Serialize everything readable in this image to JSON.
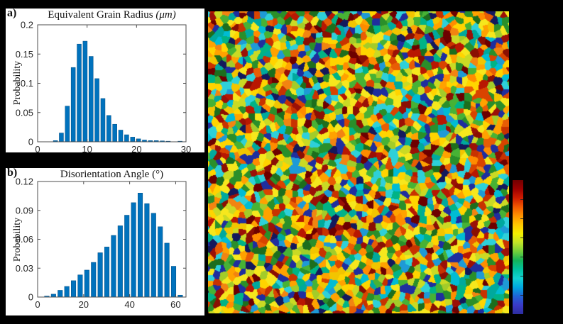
{
  "figure": {
    "background": "#000000",
    "panel_a": {
      "corner_label": "a)",
      "title": "Equivalent Grain Radius ",
      "title_unit": "(μm)",
      "ylabel": "Probability"
    },
    "panel_b": {
      "corner_label": "b)",
      "title": "Disorientation Angle ",
      "title_unit": "(°)",
      "ylabel": "Probability"
    }
  },
  "chart_data": [
    {
      "type": "bar",
      "id": "chart-a",
      "title": "Equivalent Grain Radius (μm)",
      "xlabel": "",
      "ylabel": "Probability",
      "x": [
        3.6,
        4.8,
        6,
        7.2,
        8.4,
        9.6,
        10.8,
        12,
        13.2,
        14.4,
        15.6,
        16.8,
        18,
        19.2,
        20.4,
        21.6,
        22.8,
        24,
        25.2,
        26.4,
        28.8
      ],
      "values": [
        0.002,
        0.015,
        0.061,
        0.127,
        0.167,
        0.172,
        0.146,
        0.108,
        0.074,
        0.045,
        0.03,
        0.02,
        0.012,
        0.008,
        0.005,
        0.003,
        0.002,
        0.002,
        0.0015,
        0.001,
        0.001
      ],
      "bar_width": 0.85,
      "xlim": [
        0,
        30
      ],
      "ylim": [
        0,
        0.2
      ],
      "xticks": [
        0,
        10,
        20,
        30
      ],
      "xticklabels": [
        "0",
        "10",
        "20",
        "30"
      ],
      "yticks": [
        0,
        0.05,
        0.1,
        0.15,
        0.2
      ],
      "yticklabels": [
        "0",
        "0.05",
        "0.1",
        "0.15",
        "0.2"
      ],
      "grid": false,
      "legend": null,
      "bar_color": "#0072BD",
      "bar_edge": "#08568c"
    },
    {
      "type": "bar",
      "id": "chart-b",
      "title": "Disorientation Angle (°)",
      "xlabel": "",
      "ylabel": "Probability",
      "x": [
        4,
        6.9,
        9.8,
        12.7,
        15.6,
        18.5,
        21.4,
        24.3,
        27.2,
        30.1,
        33,
        35.9,
        38.8,
        41.7,
        44.6,
        47.5,
        50.4,
        53.3,
        56.2,
        59.1,
        62
      ],
      "values": [
        0.001,
        0.003,
        0.007,
        0.011,
        0.017,
        0.023,
        0.028,
        0.036,
        0.046,
        0.052,
        0.064,
        0.074,
        0.085,
        0.098,
        0.108,
        0.097,
        0.087,
        0.073,
        0.056,
        0.032,
        0.002
      ],
      "bar_width": 2.0,
      "xlim": [
        0,
        64.5
      ],
      "ylim": [
        0,
        0.12
      ],
      "xticks": [
        0,
        20,
        40,
        60
      ],
      "xticklabels": [
        "0",
        "20",
        "40",
        "60"
      ],
      "yticks": [
        0,
        0.03,
        0.06,
        0.09,
        0.12
      ],
      "yticklabels": [
        "0",
        "0.03",
        "0.06",
        "0.09",
        "0.12"
      ],
      "grid": false,
      "legend": null,
      "bar_color": "#0072BD",
      "bar_edge": "#08568c"
    }
  ],
  "grain_map": {
    "seed": 7,
    "palette": [
      "#f6e71d",
      "#f6e71d",
      "#f6e71d",
      "#ffd400",
      "#ffd400",
      "#f2c500",
      "#ffa200",
      "#ffa200",
      "#f28411",
      "#ff8c00",
      "#e85d04",
      "#d94400",
      "#c83200",
      "#b81702",
      "#9b1007",
      "#8a0f03",
      "#6d0000",
      "#cada24",
      "#cada24",
      "#a3cc29",
      "#47b235",
      "#47b235",
      "#2a8f2a",
      "#2a8f2a",
      "#1d6e1d",
      "#00b386",
      "#00a99d",
      "#2ed0d9",
      "#2ed0d9",
      "#00bcd4",
      "#1e9ad6",
      "#1f2e9e",
      "#1f2e9e",
      "#14195c"
    ],
    "colorbar_stops": [
      "#730000",
      "#9e0000",
      "#cf1c00",
      "#f25800",
      "#ff9400",
      "#ffc800",
      "#f4f000",
      "#c2e428",
      "#72cf3a",
      "#14b45a",
      "#00c2a0",
      "#12d2d2",
      "#00a8e0",
      "#2063d8",
      "#3a3ac8",
      "#2e2ea0"
    ],
    "colorbar_tick_count": 6
  }
}
